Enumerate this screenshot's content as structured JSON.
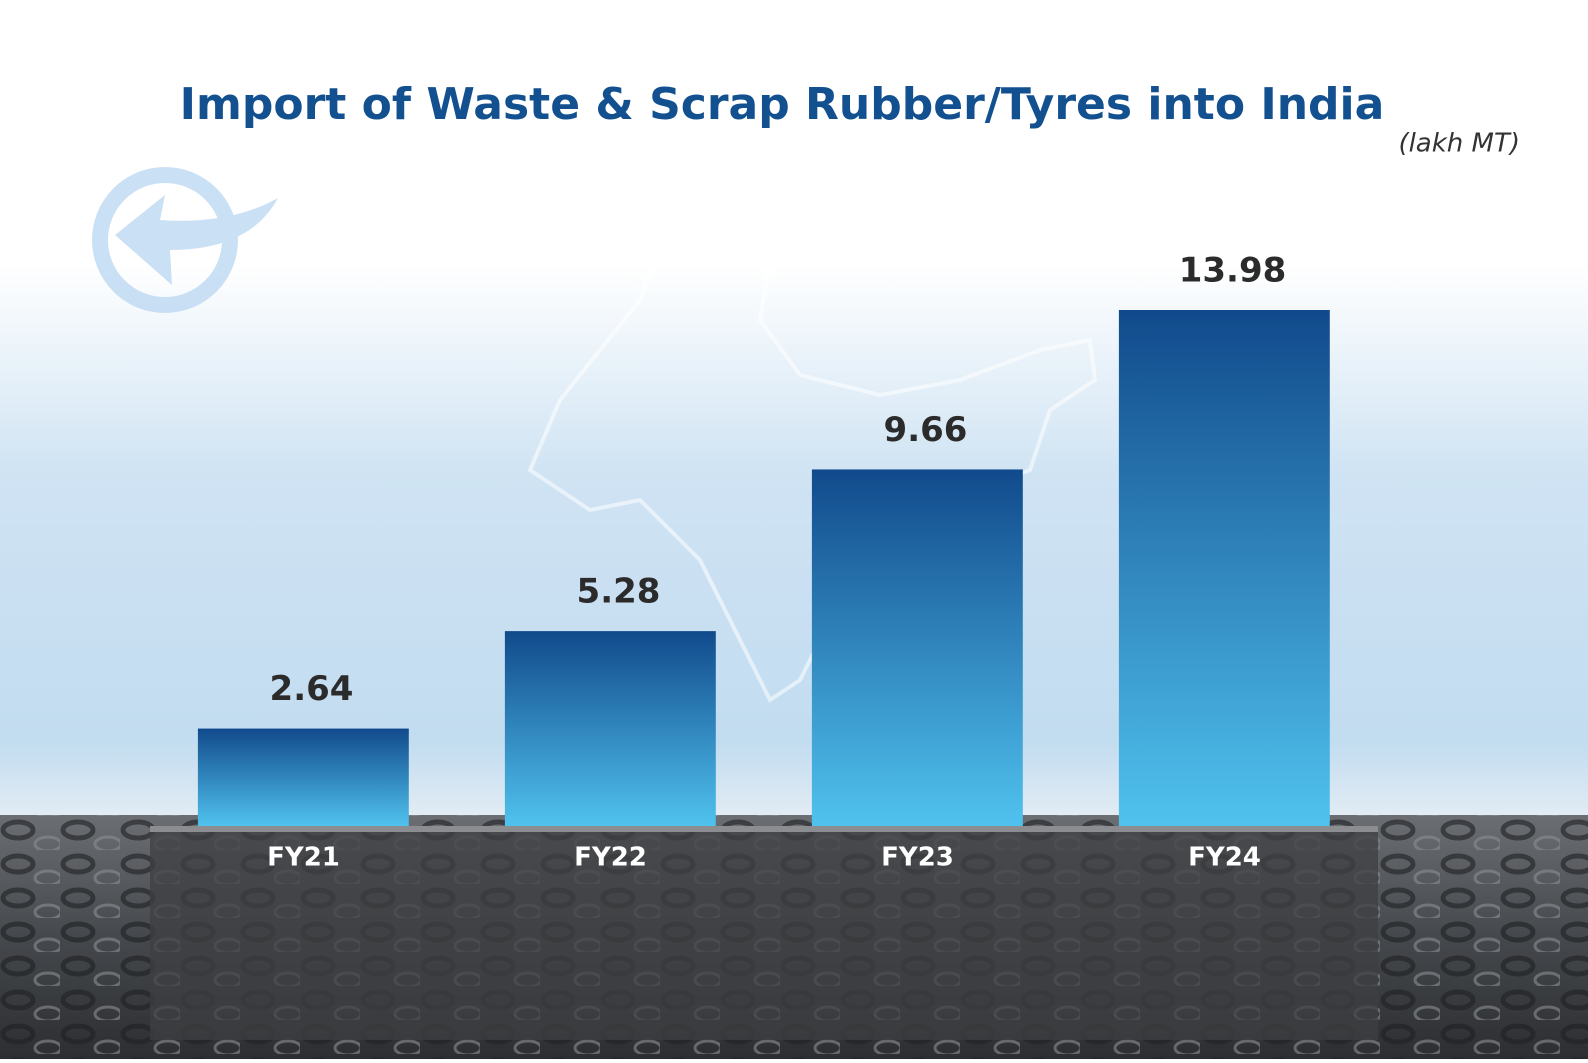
{
  "chart_data": {
    "type": "bar",
    "title": "Import of Waste & Scrap Rubber/Tyres into India",
    "unit_label": "(lakh MT)",
    "categories": [
      "FY21",
      "FY22",
      "FY23",
      "FY24"
    ],
    "values": [
      2.64,
      5.28,
      9.66,
      13.98
    ],
    "color_top": "#114a8c",
    "color_bottom": "#50c2ee"
  }
}
